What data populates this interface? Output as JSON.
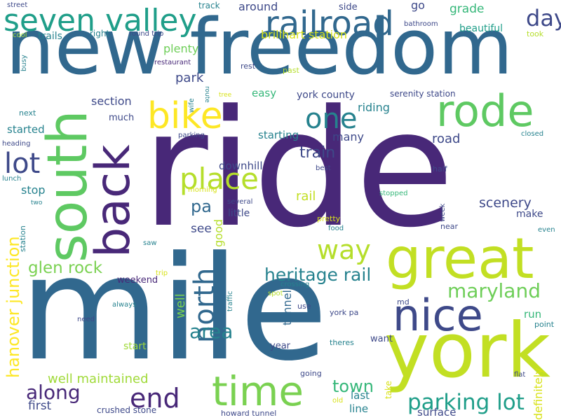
{
  "words": [
    {
      "text": "ride",
      "color": "#482878"
    },
    {
      "text": "mile",
      "color": "#31688e"
    },
    {
      "text": "new freedom",
      "color": "#31688e"
    },
    {
      "text": "york",
      "color": "#c2df23"
    },
    {
      "text": "great",
      "color": "#c2df23"
    },
    {
      "text": "south",
      "color": "#5ec962"
    },
    {
      "text": "back",
      "color": "#482878"
    },
    {
      "text": "rode",
      "color": "#5ec962"
    },
    {
      "text": "bike",
      "color": "#fde725"
    },
    {
      "text": "seven valley",
      "color": "#1f9e89"
    },
    {
      "text": "railroad",
      "color": "#31688e"
    },
    {
      "text": "nice",
      "color": "#3e4989"
    },
    {
      "text": "time",
      "color": "#7ad151"
    },
    {
      "text": "one",
      "color": "#26828e"
    },
    {
      "text": "place",
      "color": "#b5de2b"
    },
    {
      "text": "lot",
      "color": "#3e4989"
    },
    {
      "text": "end",
      "color": "#482878"
    },
    {
      "text": "way",
      "color": "#b5de2b"
    },
    {
      "text": "north",
      "color": "#31688e"
    },
    {
      "text": "day",
      "color": "#3e4989"
    },
    {
      "text": "parking lot",
      "color": "#1f9e89"
    },
    {
      "text": "maryland",
      "color": "#6ece58"
    },
    {
      "text": "area",
      "color": "#26828e"
    },
    {
      "text": "heritage rail",
      "color": "#26828e"
    },
    {
      "text": "hanover junction",
      "color": "#fde725"
    },
    {
      "text": "glen rock",
      "color": "#7ad151"
    },
    {
      "text": "along",
      "color": "#482878"
    },
    {
      "text": "town",
      "color": "#35b779"
    },
    {
      "text": "pa",
      "color": "#31688e"
    },
    {
      "text": "train",
      "color": "#3e4989"
    },
    {
      "text": "scenery",
      "color": "#3e4989"
    },
    {
      "text": "well maintained",
      "color": "#a0da39"
    },
    {
      "text": "park",
      "color": "#3e4989"
    },
    {
      "text": "plenty",
      "color": "#6ece58"
    },
    {
      "text": "grade",
      "color": "#35b779"
    },
    {
      "text": "beautiful",
      "color": "#1f9e89"
    },
    {
      "text": "around",
      "color": "#3e4989"
    },
    {
      "text": "brillhart station",
      "color": "#d8e219"
    },
    {
      "text": "trails",
      "color": "#26828e"
    },
    {
      "text": "section",
      "color": "#3e4989"
    },
    {
      "text": "riding",
      "color": "#26828e"
    },
    {
      "text": "york county",
      "color": "#3e4989"
    },
    {
      "text": "easy",
      "color": "#35b779"
    },
    {
      "text": "serenity station",
      "color": "#3e4989"
    },
    {
      "text": "road",
      "color": "#3e4989"
    },
    {
      "text": "starting",
      "color": "#26828e"
    },
    {
      "text": "many",
      "color": "#3e4989"
    },
    {
      "text": "started",
      "color": "#26828e"
    },
    {
      "text": "stop",
      "color": "#26828e"
    },
    {
      "text": "downhill",
      "color": "#3e4989"
    },
    {
      "text": "rail",
      "color": "#c2df23"
    },
    {
      "text": "see",
      "color": "#3e4989"
    },
    {
      "text": "little",
      "color": "#3e4989"
    },
    {
      "text": "make",
      "color": "#3e4989"
    },
    {
      "text": "well",
      "color": "#7ad151"
    },
    {
      "text": "good",
      "color": "#b5de2b"
    },
    {
      "text": "first",
      "color": "#3e4989"
    },
    {
      "text": "start",
      "color": "#a0da39"
    },
    {
      "text": "run",
      "color": "#35b779"
    },
    {
      "text": "surface",
      "color": "#3e4989"
    },
    {
      "text": "last",
      "color": "#26828e"
    },
    {
      "text": "line",
      "color": "#26828e"
    },
    {
      "text": "crushed stone",
      "color": "#3e4989"
    },
    {
      "text": "tunnel",
      "color": "#31688e"
    },
    {
      "text": "year",
      "color": "#3e4989"
    },
    {
      "text": "want",
      "color": "#3e4989"
    },
    {
      "text": "definitely",
      "color": "#d8e219"
    },
    {
      "text": "weekend",
      "color": "#482878"
    },
    {
      "text": "much",
      "color": "#3e4989"
    },
    {
      "text": "go",
      "color": "#3e4989"
    },
    {
      "text": "side",
      "color": "#3e4989"
    },
    {
      "text": "track",
      "color": "#26828e"
    },
    {
      "text": "street",
      "color": "#3e4989"
    },
    {
      "text": "cool",
      "color": "#a0da39"
    },
    {
      "text": "right",
      "color": "#26828e"
    },
    {
      "text": "round trip",
      "color": "#3e4989"
    },
    {
      "text": "bathroom",
      "color": "#3e4989"
    },
    {
      "text": "took",
      "color": "#b5de2b"
    },
    {
      "text": "restaurant",
      "color": "#482878"
    },
    {
      "text": "rest",
      "color": "#3e4989"
    },
    {
      "text": "past",
      "color": "#b5de2b"
    },
    {
      "text": "busy",
      "color": "#26828e"
    },
    {
      "text": "next",
      "color": "#26828e"
    },
    {
      "text": "heading",
      "color": "#3e4989"
    },
    {
      "text": "lunch",
      "color": "#26828e"
    },
    {
      "text": "two",
      "color": "#26828e"
    },
    {
      "text": "station",
      "color": "#26828e"
    },
    {
      "text": "route",
      "color": "#26828e"
    },
    {
      "text": "tree",
      "color": "#d8e219"
    },
    {
      "text": "wife",
      "color": "#26828e"
    },
    {
      "text": "parking",
      "color": "#3e4989"
    },
    {
      "text": "closed",
      "color": "#26828e"
    },
    {
      "text": "half",
      "color": "#3e4989"
    },
    {
      "text": "best",
      "color": "#3e4989"
    },
    {
      "text": "morning",
      "color": "#d8e219"
    },
    {
      "text": "several",
      "color": "#3e4989"
    },
    {
      "text": "stopped",
      "color": "#35b779"
    },
    {
      "text": "week",
      "color": "#3e4989"
    },
    {
      "text": "pretty",
      "color": "#d8e219"
    },
    {
      "text": "food",
      "color": "#26828e"
    },
    {
      "text": "near",
      "color": "#3e4989"
    },
    {
      "text": "even",
      "color": "#26828e"
    },
    {
      "text": "saw",
      "color": "#26828e"
    },
    {
      "text": "trip",
      "color": "#d8e219"
    },
    {
      "text": "crossing",
      "color": "#26828e"
    },
    {
      "text": "spot",
      "color": "#b5de2b"
    },
    {
      "text": "always",
      "color": "#26828e"
    },
    {
      "text": "traffic",
      "color": "#26828e"
    },
    {
      "text": "use",
      "color": "#3e4989"
    },
    {
      "text": "md",
      "color": "#3e4989"
    },
    {
      "text": "need",
      "color": "#3e4989"
    },
    {
      "text": "york pa",
      "color": "#3e4989"
    },
    {
      "text": "point",
      "color": "#26828e"
    },
    {
      "text": "theres",
      "color": "#26828e"
    },
    {
      "text": "going",
      "color": "#3e4989"
    },
    {
      "text": "take",
      "color": "#d8e219"
    },
    {
      "text": "flat",
      "color": "#3e4989"
    },
    {
      "text": "old",
      "color": "#d8e219"
    },
    {
      "text": "howard tunnel",
      "color": "#3e4989"
    }
  ]
}
